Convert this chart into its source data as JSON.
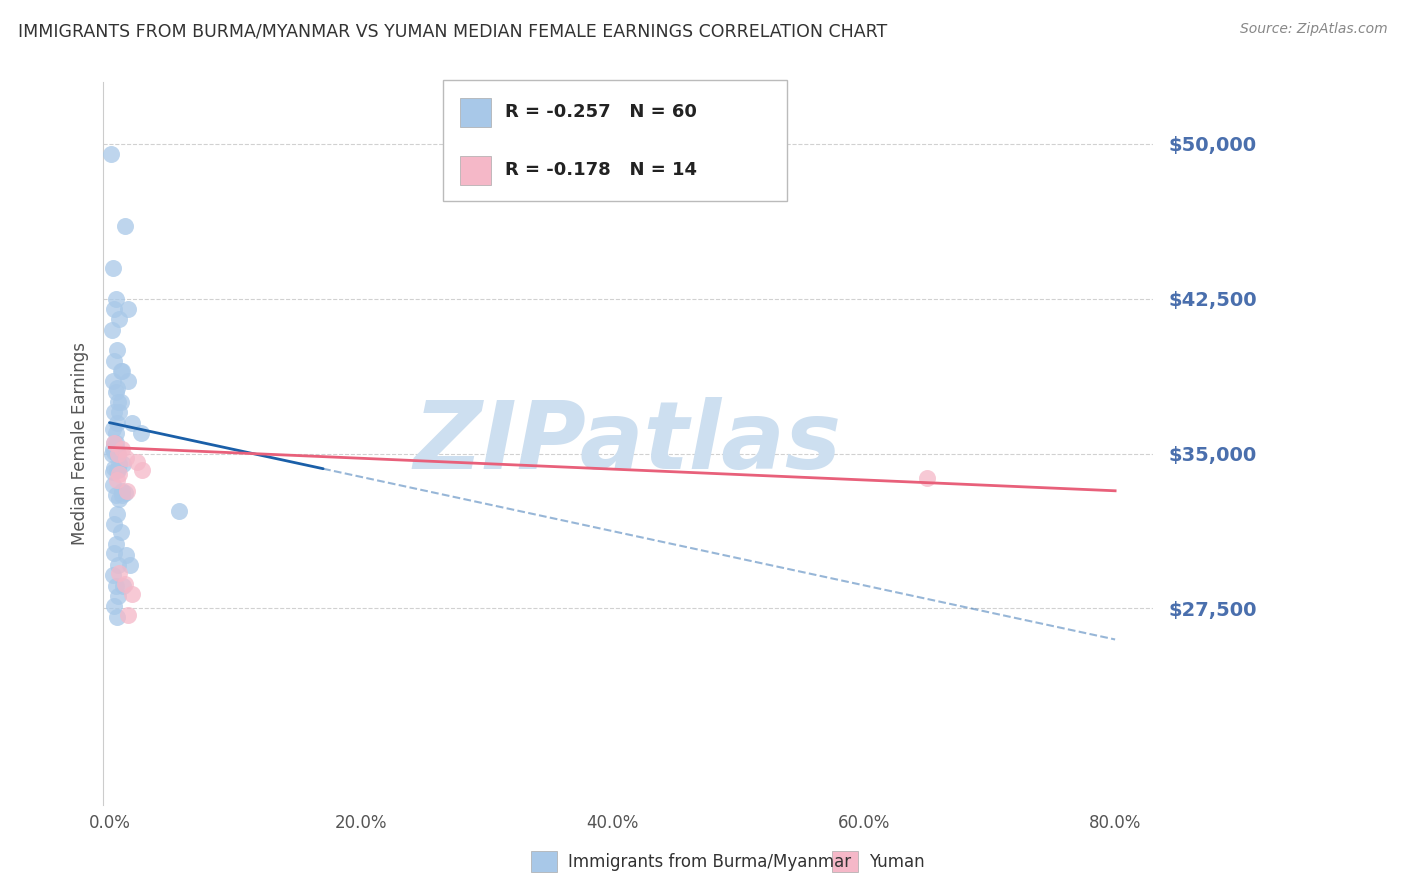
{
  "title": "IMMIGRANTS FROM BURMA/MYANMAR VS YUMAN MEDIAN FEMALE EARNINGS CORRELATION CHART",
  "source": "Source: ZipAtlas.com",
  "ylabel": "Median Female Earnings",
  "xlabel_ticks": [
    "0.0%",
    "20.0%",
    "40.0%",
    "60.0%",
    "80.0%"
  ],
  "xlabel_vals": [
    0.0,
    20.0,
    40.0,
    60.0,
    80.0
  ],
  "ytick_labels": [
    "$50,000",
    "$42,500",
    "$35,000",
    "$27,500"
  ],
  "ytick_vals": [
    50000,
    42500,
    35000,
    27500
  ],
  "ylim": [
    18000,
    53000
  ],
  "xlim": [
    -0.5,
    83.0
  ],
  "legend1_label": "R = -0.257   N = 60",
  "legend2_label": "R = -0.178   N = 14",
  "legend1_color": "#a8c8e8",
  "legend2_color": "#f5b8c8",
  "blue_scatter_x": [
    0.1,
    1.2,
    0.3,
    0.5,
    1.5,
    0.8,
    0.2,
    0.6,
    0.4,
    0.9,
    0.3,
    0.5,
    0.7,
    0.4,
    0.6,
    0.8,
    1.0,
    1.8,
    2.5,
    1.5,
    0.4,
    0.6,
    0.9,
    0.3,
    0.5,
    1.1,
    0.2,
    0.4,
    0.7,
    0.5,
    0.3,
    0.6,
    0.4,
    0.8,
    0.5,
    0.3,
    0.7,
    0.4,
    0.6,
    1.2,
    0.3,
    0.5,
    0.8,
    1.0,
    0.6,
    0.4,
    0.9,
    0.5,
    1.3,
    1.6,
    0.3,
    0.5,
    0.7,
    0.4,
    0.6,
    1.0,
    0.4,
    0.7,
    1.1,
    5.5
  ],
  "blue_scatter_y": [
    49500,
    46000,
    44000,
    42500,
    42000,
    41500,
    41000,
    40000,
    39500,
    39000,
    38500,
    38000,
    37500,
    42000,
    38200,
    37000,
    39000,
    36500,
    36000,
    38500,
    37000,
    36500,
    37500,
    36200,
    35500,
    34500,
    35000,
    35500,
    34200,
    36000,
    35200,
    35000,
    35100,
    34500,
    35300,
    34100,
    35000,
    34300,
    34200,
    33100,
    33500,
    33000,
    32800,
    33200,
    32100,
    31600,
    31200,
    30600,
    30100,
    29600,
    29100,
    28600,
    28100,
    27600,
    27100,
    33000,
    30200,
    29600,
    28600,
    32200
  ],
  "pink_scatter_x": [
    0.4,
    0.7,
    1.0,
    1.3,
    2.2,
    2.6,
    0.8,
    0.6,
    0.8,
    1.2,
    1.8,
    1.5,
    65.0,
    1.4
  ],
  "pink_scatter_y": [
    35500,
    35000,
    35200,
    34800,
    34600,
    34200,
    34000,
    33700,
    29200,
    28700,
    28200,
    27200,
    33800,
    33200
  ],
  "blue_line_x0": 0.0,
  "blue_line_x1": 80.0,
  "blue_line_y0": 36500,
  "blue_line_y1": 26000,
  "blue_solid_end": 17.0,
  "pink_line_x0": 0.0,
  "pink_line_x1": 80.0,
  "pink_line_y0": 35300,
  "pink_line_y1": 33200,
  "blue_line_color": "#1a5fa8",
  "pink_line_color": "#e8607a",
  "watermark": "ZIPatlas",
  "watermark_color": "#cddff0",
  "bg_color": "#ffffff",
  "grid_color": "#cccccc",
  "title_color": "#333333",
  "axis_label_color": "#555555",
  "ytick_color": "#4a6fad",
  "xtick_color": "#555555",
  "legend_bottom_labels": [
    "Immigrants from Burma/Myanmar",
    "Yuman"
  ]
}
